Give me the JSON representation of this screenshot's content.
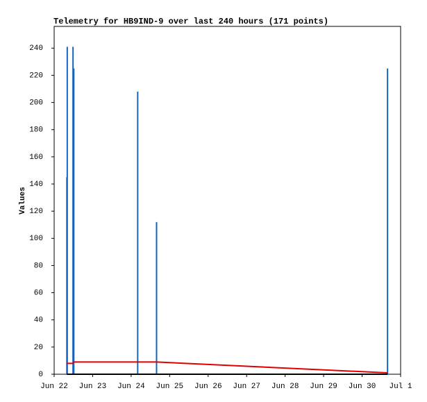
{
  "chart_data": {
    "type": "line",
    "title": "Telemetry for HB9IND-9 over last 240 hours (171 points)",
    "y_label": "Values",
    "x": [
      0.33,
      0.34,
      0.49,
      0.51,
      2.17,
      2.66,
      8.66
    ],
    "series": [
      {
        "name": "Blue",
        "color": "#1565c0",
        "style": "impulse",
        "values": [
          145,
          241,
          241,
          225,
          208,
          112,
          225
        ]
      },
      {
        "name": "Red",
        "color": "#e00000",
        "style": "line",
        "values": [
          8,
          8,
          8,
          9,
          9,
          9,
          1
        ]
      },
      {
        "name": "Black",
        "color": "#000000",
        "style": "line",
        "values": [
          0,
          0,
          0,
          0,
          0,
          0,
          0
        ]
      }
    ],
    "xlim": [
      0,
      9
    ],
    "xticks": [
      {
        "value": 0,
        "label": "Jun 22"
      },
      {
        "value": 1,
        "label": "Jun 23"
      },
      {
        "value": 2,
        "label": "Jun 24"
      },
      {
        "value": 3,
        "label": "Jun 25"
      },
      {
        "value": 4,
        "label": "Jun 26"
      },
      {
        "value": 5,
        "label": "Jun 27"
      },
      {
        "value": 6,
        "label": "Jun 28"
      },
      {
        "value": 7,
        "label": "Jun 29"
      },
      {
        "value": 8,
        "label": "Jun 30"
      },
      {
        "value": 9,
        "label": "Jul 1"
      }
    ],
    "ylim": [
      0,
      256
    ],
    "yticks": [
      0,
      20,
      40,
      60,
      80,
      100,
      120,
      140,
      160,
      180,
      200,
      220,
      240
    ]
  }
}
